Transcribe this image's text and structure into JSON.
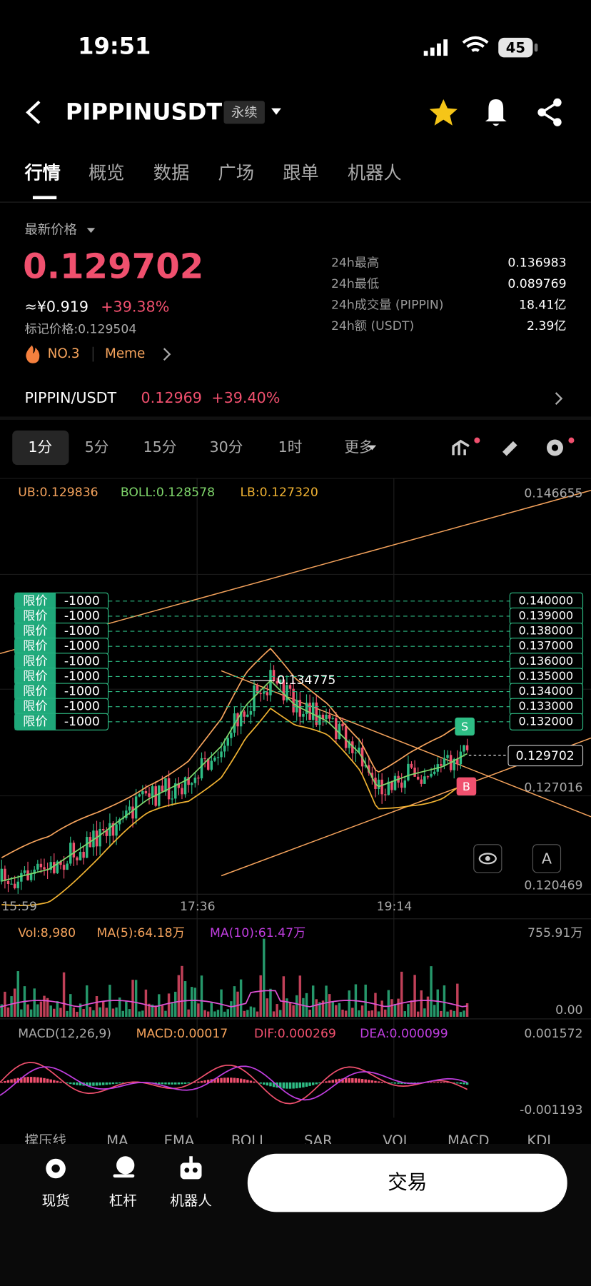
{
  "status": {
    "time": "19:51",
    "battery": "45"
  },
  "header": {
    "symbol": "PIPPINUSDT",
    "tag": "永续"
  },
  "tabs": [
    "行情",
    "概览",
    "数据",
    "广场",
    "跟单",
    "机器人"
  ],
  "price": {
    "label": "最新价格",
    "last": "0.129702",
    "cny": "≈¥0.919",
    "change": "+39.38%",
    "mark": "标记价格:0.129504",
    "rank": "NO.3",
    "sector": "Meme"
  },
  "stats": [
    {
      "label": "24h最高",
      "value": "0.136983"
    },
    {
      "label": "24h最低",
      "value": "0.089769"
    },
    {
      "label": "24h成交量 (PIPPIN)",
      "value": "18.41亿"
    },
    {
      "label": "24h额 (USDT)",
      "value": "2.39亿"
    }
  ],
  "spot": {
    "pair": "PIPPIN/USDT",
    "price": "0.12969",
    "change": "+39.40%"
  },
  "intervals": [
    "1分",
    "5分",
    "15分",
    "30分",
    "1时",
    "更多"
  ],
  "chart": {
    "boll": [
      "UB:0.129836",
      "BOLL:0.128578",
      "LB:0.127320"
    ],
    "axis": [
      "0.146655",
      "0.127016",
      "0.120469"
    ],
    "high": "0.134775",
    "current": "0.129702",
    "orders": [
      {
        "type": "限价",
        "qty": "-1000",
        "price": "0.140000"
      },
      {
        "type": "限价",
        "qty": "-1000",
        "price": "0.139000"
      },
      {
        "type": "限价",
        "qty": "-1000",
        "price": "0.138000"
      },
      {
        "type": "限价",
        "qty": "-1000",
        "price": "0.137000"
      },
      {
        "type": "限价",
        "qty": "-1000",
        "price": "0.136000"
      },
      {
        "type": "限价",
        "qty": "-1000",
        "price": "0.135000"
      },
      {
        "type": "限价",
        "qty": "-1000",
        "price": "0.134000"
      },
      {
        "type": "限价",
        "qty": "-1000",
        "price": "0.133000"
      },
      {
        "type": "限价",
        "qty": "-1000",
        "price": "0.132000"
      }
    ],
    "times": [
      "15:59",
      "17:36",
      "19:14"
    ],
    "sell": "S",
    "buy": "B",
    "auto": "A"
  },
  "volume": {
    "labels": [
      "Vol:8,980",
      "MA(5):64.18万",
      "MA(10):61.47万"
    ],
    "axis": [
      "755.91万",
      "0.00"
    ]
  },
  "macd": {
    "labels": [
      "MACD(12,26,9)",
      "MACD:0.00017",
      "DIF:0.000269",
      "DEA:0.000099"
    ],
    "axis": [
      "0.001572",
      "-0.001193"
    ]
  },
  "indicators": [
    "撑压线",
    "MA",
    "EMA",
    "BOLL",
    "SAR",
    "VOL",
    "MACD",
    "KDJ"
  ],
  "nav": [
    "现货",
    "杠杆",
    "机器人"
  ],
  "trade": "交易"
}
